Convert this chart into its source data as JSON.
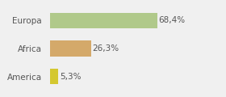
{
  "categories": [
    "Europa",
    "Africa",
    "America"
  ],
  "values": [
    68.4,
    26.3,
    5.3
  ],
  "labels": [
    "68,4%",
    "26,3%",
    "5,3%"
  ],
  "bar_colors": [
    "#b0c98a",
    "#d4a96a",
    "#d4c830"
  ],
  "background_color": "#f0f0f0",
  "xlim": [
    0,
    95
  ],
  "bar_height": 0.55,
  "figsize": [
    2.8,
    1.2
  ],
  "dpi": 100
}
